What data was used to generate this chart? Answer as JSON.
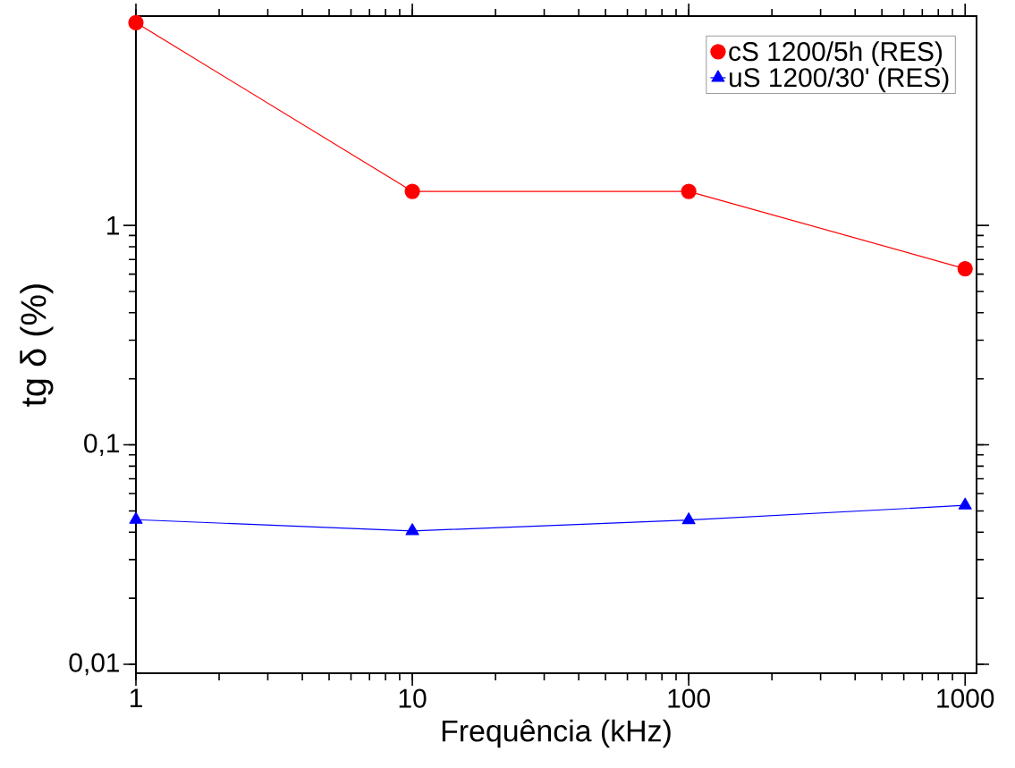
{
  "chart_data": {
    "type": "line",
    "xlabel": "Frequência (kHz)",
    "ylabel": "tg δ (%)",
    "x": [
      1,
      10,
      100,
      1000
    ],
    "series": [
      {
        "name": "cS 1200/5h (RES)",
        "color": "#ff0000",
        "marker": "circle",
        "values": [
          8.4,
          1.43,
          1.43,
          0.635
        ]
      },
      {
        "name": "uS 1200/30' (RES)",
        "color": "#0000ff",
        "marker": "triangle",
        "values": [
          0.0456,
          0.0405,
          0.0454,
          0.053
        ]
      }
    ],
    "log": "xy",
    "xlim": [
      1,
      1100
    ],
    "ylim": [
      0.0091,
      9
    ],
    "xticks": [
      1,
      10,
      100,
      1000
    ],
    "yticks": [
      {
        "value": 0.01,
        "label": "0,01"
      },
      {
        "value": 0.1,
        "label": "0,1"
      },
      {
        "value": 1,
        "label": "1"
      }
    ],
    "legend": "top right",
    "grid": false,
    "line_style": "solid"
  }
}
